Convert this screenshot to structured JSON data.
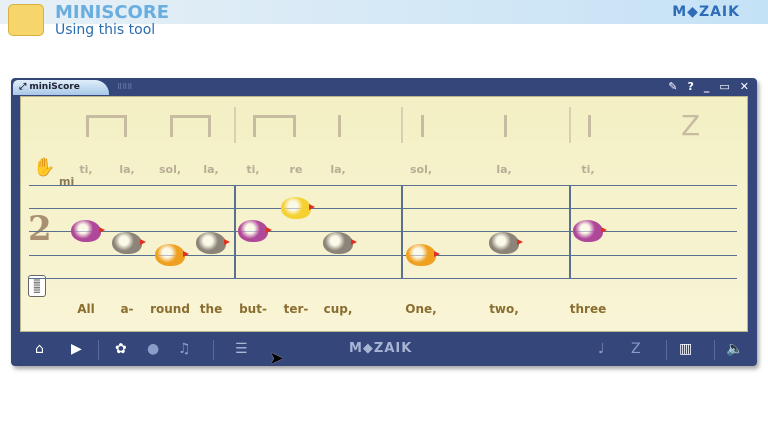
{
  "header": {
    "title": "MINISCORE",
    "subtitle": "Using this tool",
    "brand": "M◆ZAIK"
  },
  "window": {
    "tab_label": "miniScore",
    "buttons": [
      "pin",
      "help",
      "minimize",
      "maximize",
      "close"
    ]
  },
  "score": {
    "time_signature": "2",
    "key_label": "mi",
    "rhythm": [
      "ti-ti",
      "ti-ti",
      "|",
      "ti-ti",
      "ta",
      "|",
      "ta",
      "ta",
      "|",
      "ta",
      "rest"
    ],
    "solfege": [
      "ti,",
      "la,",
      "sol,",
      "la,",
      "ti,",
      "re",
      "la,",
      "sol,",
      "la,",
      "ti,"
    ],
    "lyrics": [
      "All",
      "a-",
      "round",
      "the",
      "but-",
      "ter-",
      "cup,",
      "One,",
      "two,",
      "three"
    ],
    "notes": [
      {
        "pitch": "ti",
        "color": "#b0489a"
      },
      {
        "pitch": "la",
        "color": "#8c8478"
      },
      {
        "pitch": "sol",
        "color": "#f0a020"
      },
      {
        "pitch": "la",
        "color": "#8c8478"
      },
      {
        "pitch": "ti",
        "color": "#b0489a"
      },
      {
        "pitch": "re",
        "color": "#f4d030"
      },
      {
        "pitch": "la",
        "color": "#8c8478"
      },
      {
        "pitch": "sol",
        "color": "#f0a020"
      },
      {
        "pitch": "la",
        "color": "#8c8478"
      },
      {
        "pitch": "ti",
        "color": "#b0489a"
      }
    ]
  },
  "toolbar": {
    "brand": "M◆ZAIK",
    "icons": [
      "home-icon",
      "play-icon",
      "bird-icon",
      "dot-icon",
      "music-note-icon",
      "list-icon",
      "quarter-note-icon",
      "rest-icon",
      "piano-icon",
      "speaker-icon"
    ]
  }
}
